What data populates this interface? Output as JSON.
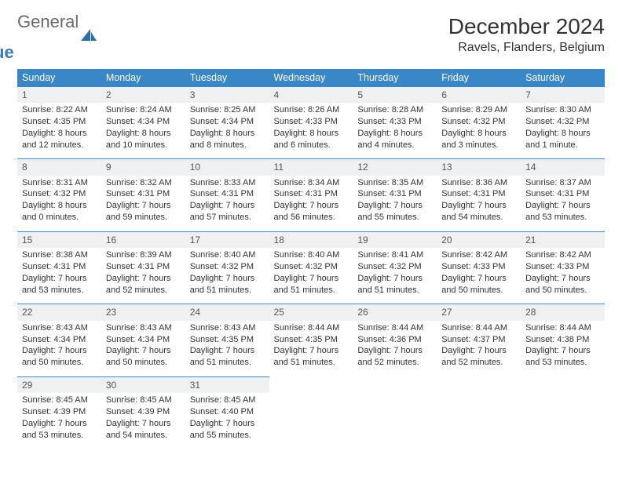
{
  "logo": {
    "line1": "General",
    "line2": "Blue"
  },
  "title": "December 2024",
  "location": "Ravels, Flanders, Belgium",
  "colors": {
    "header_bg": "#3a87c7",
    "header_text": "#ffffff",
    "daynum_bg": "#eef0f1",
    "row_border": "#3a87c7",
    "text": "#333333",
    "logo_gray": "#6a6a6a",
    "logo_blue": "#3b7ab8"
  },
  "font": {
    "family": "Arial",
    "cell_size_pt": 8.5,
    "title_size_pt": 21,
    "location_size_pt": 12
  },
  "weekdays": [
    "Sunday",
    "Monday",
    "Tuesday",
    "Wednesday",
    "Thursday",
    "Friday",
    "Saturday"
  ],
  "weeks": [
    [
      {
        "n": "1",
        "sr": "Sunrise: 8:22 AM",
        "ss": "Sunset: 4:35 PM",
        "dl1": "Daylight: 8 hours",
        "dl2": "and 12 minutes."
      },
      {
        "n": "2",
        "sr": "Sunrise: 8:24 AM",
        "ss": "Sunset: 4:34 PM",
        "dl1": "Daylight: 8 hours",
        "dl2": "and 10 minutes."
      },
      {
        "n": "3",
        "sr": "Sunrise: 8:25 AM",
        "ss": "Sunset: 4:34 PM",
        "dl1": "Daylight: 8 hours",
        "dl2": "and 8 minutes."
      },
      {
        "n": "4",
        "sr": "Sunrise: 8:26 AM",
        "ss": "Sunset: 4:33 PM",
        "dl1": "Daylight: 8 hours",
        "dl2": "and 6 minutes."
      },
      {
        "n": "5",
        "sr": "Sunrise: 8:28 AM",
        "ss": "Sunset: 4:33 PM",
        "dl1": "Daylight: 8 hours",
        "dl2": "and 4 minutes."
      },
      {
        "n": "6",
        "sr": "Sunrise: 8:29 AM",
        "ss": "Sunset: 4:32 PM",
        "dl1": "Daylight: 8 hours",
        "dl2": "and 3 minutes."
      },
      {
        "n": "7",
        "sr": "Sunrise: 8:30 AM",
        "ss": "Sunset: 4:32 PM",
        "dl1": "Daylight: 8 hours",
        "dl2": "and 1 minute."
      }
    ],
    [
      {
        "n": "8",
        "sr": "Sunrise: 8:31 AM",
        "ss": "Sunset: 4:32 PM",
        "dl1": "Daylight: 8 hours",
        "dl2": "and 0 minutes."
      },
      {
        "n": "9",
        "sr": "Sunrise: 8:32 AM",
        "ss": "Sunset: 4:31 PM",
        "dl1": "Daylight: 7 hours",
        "dl2": "and 59 minutes."
      },
      {
        "n": "10",
        "sr": "Sunrise: 8:33 AM",
        "ss": "Sunset: 4:31 PM",
        "dl1": "Daylight: 7 hours",
        "dl2": "and 57 minutes."
      },
      {
        "n": "11",
        "sr": "Sunrise: 8:34 AM",
        "ss": "Sunset: 4:31 PM",
        "dl1": "Daylight: 7 hours",
        "dl2": "and 56 minutes."
      },
      {
        "n": "12",
        "sr": "Sunrise: 8:35 AM",
        "ss": "Sunset: 4:31 PM",
        "dl1": "Daylight: 7 hours",
        "dl2": "and 55 minutes."
      },
      {
        "n": "13",
        "sr": "Sunrise: 8:36 AM",
        "ss": "Sunset: 4:31 PM",
        "dl1": "Daylight: 7 hours",
        "dl2": "and 54 minutes."
      },
      {
        "n": "14",
        "sr": "Sunrise: 8:37 AM",
        "ss": "Sunset: 4:31 PM",
        "dl1": "Daylight: 7 hours",
        "dl2": "and 53 minutes."
      }
    ],
    [
      {
        "n": "15",
        "sr": "Sunrise: 8:38 AM",
        "ss": "Sunset: 4:31 PM",
        "dl1": "Daylight: 7 hours",
        "dl2": "and 53 minutes."
      },
      {
        "n": "16",
        "sr": "Sunrise: 8:39 AM",
        "ss": "Sunset: 4:31 PM",
        "dl1": "Daylight: 7 hours",
        "dl2": "and 52 minutes."
      },
      {
        "n": "17",
        "sr": "Sunrise: 8:40 AM",
        "ss": "Sunset: 4:32 PM",
        "dl1": "Daylight: 7 hours",
        "dl2": "and 51 minutes."
      },
      {
        "n": "18",
        "sr": "Sunrise: 8:40 AM",
        "ss": "Sunset: 4:32 PM",
        "dl1": "Daylight: 7 hours",
        "dl2": "and 51 minutes."
      },
      {
        "n": "19",
        "sr": "Sunrise: 8:41 AM",
        "ss": "Sunset: 4:32 PM",
        "dl1": "Daylight: 7 hours",
        "dl2": "and 51 minutes."
      },
      {
        "n": "20",
        "sr": "Sunrise: 8:42 AM",
        "ss": "Sunset: 4:33 PM",
        "dl1": "Daylight: 7 hours",
        "dl2": "and 50 minutes."
      },
      {
        "n": "21",
        "sr": "Sunrise: 8:42 AM",
        "ss": "Sunset: 4:33 PM",
        "dl1": "Daylight: 7 hours",
        "dl2": "and 50 minutes."
      }
    ],
    [
      {
        "n": "22",
        "sr": "Sunrise: 8:43 AM",
        "ss": "Sunset: 4:34 PM",
        "dl1": "Daylight: 7 hours",
        "dl2": "and 50 minutes."
      },
      {
        "n": "23",
        "sr": "Sunrise: 8:43 AM",
        "ss": "Sunset: 4:34 PM",
        "dl1": "Daylight: 7 hours",
        "dl2": "and 50 minutes."
      },
      {
        "n": "24",
        "sr": "Sunrise: 8:43 AM",
        "ss": "Sunset: 4:35 PM",
        "dl1": "Daylight: 7 hours",
        "dl2": "and 51 minutes."
      },
      {
        "n": "25",
        "sr": "Sunrise: 8:44 AM",
        "ss": "Sunset: 4:35 PM",
        "dl1": "Daylight: 7 hours",
        "dl2": "and 51 minutes."
      },
      {
        "n": "26",
        "sr": "Sunrise: 8:44 AM",
        "ss": "Sunset: 4:36 PM",
        "dl1": "Daylight: 7 hours",
        "dl2": "and 52 minutes."
      },
      {
        "n": "27",
        "sr": "Sunrise: 8:44 AM",
        "ss": "Sunset: 4:37 PM",
        "dl1": "Daylight: 7 hours",
        "dl2": "and 52 minutes."
      },
      {
        "n": "28",
        "sr": "Sunrise: 8:44 AM",
        "ss": "Sunset: 4:38 PM",
        "dl1": "Daylight: 7 hours",
        "dl2": "and 53 minutes."
      }
    ],
    [
      {
        "n": "29",
        "sr": "Sunrise: 8:45 AM",
        "ss": "Sunset: 4:39 PM",
        "dl1": "Daylight: 7 hours",
        "dl2": "and 53 minutes."
      },
      {
        "n": "30",
        "sr": "Sunrise: 8:45 AM",
        "ss": "Sunset: 4:39 PM",
        "dl1": "Daylight: 7 hours",
        "dl2": "and 54 minutes."
      },
      {
        "n": "31",
        "sr": "Sunrise: 8:45 AM",
        "ss": "Sunset: 4:40 PM",
        "dl1": "Daylight: 7 hours",
        "dl2": "and 55 minutes."
      },
      null,
      null,
      null,
      null
    ]
  ]
}
